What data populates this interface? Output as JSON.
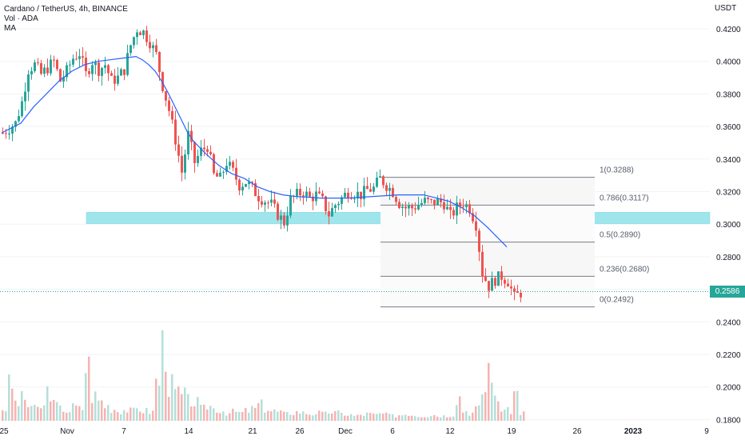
{
  "legend": {
    "title": "Cardano / TetherUS, 4h, BINANCE",
    "volume": "Vol · ADA",
    "ma": "MA"
  },
  "price_axis_unit": "USDT",
  "current_price_label": "0.2586",
  "colors": {
    "up": "#26a69a",
    "down": "#ef5350",
    "ma": "#2962ff",
    "support_zone": "#9ee5ec",
    "fib_line": "#787b86",
    "volume_up": "#b5dfd9",
    "volume_down": "#f6b3b1"
  },
  "chart_data": {
    "type": "candlestick",
    "title": "Cardano / TetherUS, 4h, BINANCE",
    "ylabel": "USDT",
    "ylim": [
      0.18,
      0.43
    ],
    "y_ticks": [
      "0.4200",
      "0.4000",
      "0.3800",
      "0.3600",
      "0.3400",
      "0.3200",
      "0.3000",
      "0.2800",
      "0.2600",
      "0.2400",
      "0.2200",
      "0.2000",
      "0.1800"
    ],
    "x_tick_labels": [
      "25",
      "Nov",
      "7",
      "14",
      "21",
      "26",
      "Dec",
      "6",
      "12",
      "19",
      "26",
      "2023",
      "9"
    ],
    "price_path": [
      [
        0,
        0.356
      ],
      [
        2,
        0.362
      ],
      [
        3,
        0.375
      ],
      [
        4,
        0.395
      ],
      [
        5,
        0.398
      ],
      [
        6,
        0.392
      ],
      [
        7,
        0.396
      ],
      [
        8,
        0.4
      ],
      [
        9,
        0.388
      ],
      [
        10,
        0.394
      ],
      [
        11,
        0.402
      ],
      [
        12,
        0.405
      ],
      [
        13,
        0.392
      ],
      [
        14,
        0.4
      ],
      [
        15,
        0.395
      ],
      [
        16,
        0.398
      ],
      [
        17,
        0.388
      ],
      [
        18,
        0.39
      ],
      [
        19,
        0.395
      ],
      [
        20,
        0.41
      ],
      [
        21,
        0.42
      ],
      [
        22,
        0.418
      ],
      [
        23,
        0.412
      ],
      [
        24,
        0.404
      ],
      [
        25,
        0.385
      ],
      [
        26,
        0.37
      ],
      [
        27,
        0.352
      ],
      [
        28,
        0.332
      ],
      [
        29,
        0.355
      ],
      [
        30,
        0.338
      ],
      [
        31,
        0.345
      ],
      [
        32,
        0.348
      ],
      [
        33,
        0.33
      ],
      [
        34,
        0.328
      ],
      [
        35,
        0.338
      ],
      [
        36,
        0.332
      ],
      [
        37,
        0.324
      ],
      [
        38,
        0.326
      ],
      [
        39,
        0.322
      ],
      [
        40,
        0.317
      ],
      [
        42,
        0.312
      ],
      [
        43,
        0.306
      ],
      [
        44,
        0.301
      ],
      [
        45,
        0.315
      ],
      [
        46,
        0.318
      ],
      [
        47,
        0.32
      ],
      [
        48,
        0.316
      ],
      [
        49,
        0.318
      ],
      [
        50,
        0.314
      ],
      [
        51,
        0.306
      ],
      [
        52,
        0.312
      ],
      [
        53,
        0.316
      ],
      [
        54,
        0.32
      ],
      [
        55,
        0.319
      ],
      [
        56,
        0.318
      ],
      [
        57,
        0.321
      ],
      [
        58,
        0.322
      ],
      [
        59,
        0.328
      ],
      [
        60,
        0.324
      ],
      [
        61,
        0.32
      ],
      [
        62,
        0.313
      ],
      [
        63,
        0.31
      ],
      [
        64,
        0.31
      ],
      [
        65,
        0.312
      ],
      [
        66,
        0.314
      ],
      [
        67,
        0.313
      ],
      [
        68,
        0.314
      ],
      [
        69,
        0.313
      ],
      [
        70,
        0.305
      ],
      [
        71,
        0.31
      ],
      [
        72,
        0.313
      ],
      [
        73,
        0.31
      ],
      [
        74,
        0.3
      ],
      [
        75,
        0.27
      ],
      [
        76,
        0.262
      ],
      [
        77,
        0.266
      ],
      [
        78,
        0.268
      ],
      [
        79,
        0.265
      ],
      [
        80,
        0.255
      ],
      [
        81,
        0.258
      ]
    ],
    "moving_average": [
      [
        0,
        0.356
      ],
      [
        3,
        0.362
      ],
      [
        5,
        0.372
      ],
      [
        7,
        0.38
      ],
      [
        9,
        0.388
      ],
      [
        11,
        0.394
      ],
      [
        13,
        0.398
      ],
      [
        15,
        0.4
      ],
      [
        17,
        0.401
      ],
      [
        19,
        0.402
      ],
      [
        21,
        0.403
      ],
      [
        22,
        0.401
      ],
      [
        23,
        0.398
      ],
      [
        24,
        0.394
      ],
      [
        25,
        0.388
      ],
      [
        26,
        0.381
      ],
      [
        27,
        0.373
      ],
      [
        28,
        0.365
      ],
      [
        29,
        0.357
      ],
      [
        30,
        0.351
      ],
      [
        32,
        0.343
      ],
      [
        34,
        0.336
      ],
      [
        36,
        0.331
      ],
      [
        38,
        0.328
      ],
      [
        40,
        0.323
      ],
      [
        42,
        0.32
      ],
      [
        44,
        0.318
      ],
      [
        46,
        0.317
      ],
      [
        50,
        0.316
      ],
      [
        54,
        0.316
      ],
      [
        58,
        0.317
      ],
      [
        62,
        0.318
      ],
      [
        64,
        0.318
      ],
      [
        66,
        0.318
      ],
      [
        68,
        0.316
      ],
      [
        70,
        0.314
      ],
      [
        72,
        0.31
      ],
      [
        74,
        0.305
      ],
      [
        76,
        0.298
      ],
      [
        78,
        0.29
      ],
      [
        79,
        0.286
      ]
    ],
    "support_zone": [
      0.3003,
      0.3073
    ],
    "fibonacci_levels": [
      {
        "ratio": "1",
        "price": 0.3288,
        "label": "1(0.3288)"
      },
      {
        "ratio": "0.786",
        "price": 0.3117,
        "label": "0.786(0.3117)"
      },
      {
        "ratio": "0.5",
        "price": 0.289,
        "label": "0.5(0.2890)"
      },
      {
        "ratio": "0.236",
        "price": 0.268,
        "label": "0.236(0.2680)"
      },
      {
        "ratio": "0",
        "price": 0.2492,
        "label": "0(0.2492)"
      }
    ],
    "current_price": 0.2586,
    "volume_relative": [
      0.12,
      0.35,
      0.18,
      0.22,
      0.15,
      0.12,
      0.14,
      0.3,
      0.16,
      0.12,
      0.1,
      0.14,
      0.12,
      0.55,
      0.25,
      0.2,
      0.15,
      0.12,
      0.1,
      0.11,
      0.1,
      0.12,
      0.1,
      0.09,
      0.4,
      0.75,
      0.35,
      0.28,
      0.25,
      0.2,
      0.18,
      0.12,
      0.15,
      0.12,
      0.1,
      0.08,
      0.09,
      0.08,
      0.1,
      0.12,
      0.16,
      0.12,
      0.1,
      0.09,
      0.07,
      0.08,
      0.09,
      0.08,
      0.07,
      0.08,
      0.07,
      0.09,
      0.08,
      0.07,
      0.06,
      0.05,
      0.06,
      0.07,
      0.06,
      0.07,
      0.06,
      0.05,
      0.06,
      0.07,
      0.06,
      0.05,
      0.05,
      0.06,
      0.05,
      0.05,
      0.06,
      0.24,
      0.1,
      0.08,
      0.12,
      0.3,
      0.55,
      0.2,
      0.12,
      0.1,
      0.28,
      0.08
    ]
  }
}
